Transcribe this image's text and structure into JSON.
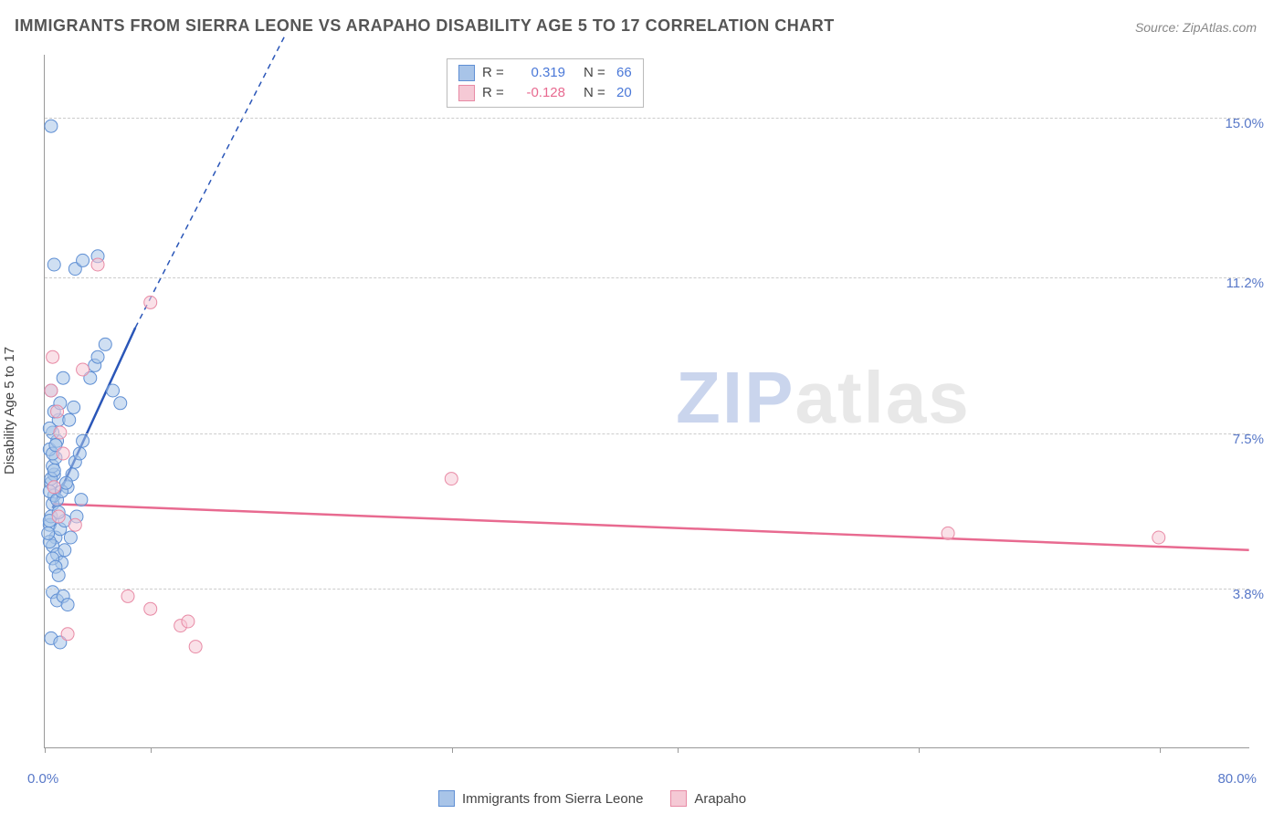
{
  "title": "IMMIGRANTS FROM SIERRA LEONE VS ARAPAHO DISABILITY AGE 5 TO 17 CORRELATION CHART",
  "source": "Source: ZipAtlas.com",
  "watermark_z": "ZIP",
  "watermark_rest": "atlas",
  "chart": {
    "type": "scatter",
    "xlim": [
      0,
      80
    ],
    "ylim": [
      0,
      16.5
    ],
    "x_axis_min_label": "0.0%",
    "x_axis_max_label": "80.0%",
    "y_axis_label": "Disability Age 5 to 17",
    "y_ticks": [
      3.8,
      7.5,
      11.2,
      15.0
    ],
    "y_tick_labels": [
      "3.8%",
      "7.5%",
      "11.2%",
      "15.0%"
    ],
    "x_tick_positions": [
      0,
      7,
      27,
      42,
      58,
      74
    ],
    "background_color": "#ffffff",
    "grid_color": "#cccccc",
    "series": [
      {
        "name": "Immigrants from Sierra Leone",
        "fill": "#a8c4e8",
        "stroke": "#5f8fd4",
        "fill_opacity": 0.55,
        "marker_radius": 7,
        "stats_r": "0.319",
        "stats_n": "66",
        "stats_r_color": "#4a78d8",
        "stats_n_color": "#4a78d8",
        "trend": {
          "x1": 0.5,
          "y1": 5.7,
          "x2": 6.0,
          "y2": 10.0,
          "dash_to_x": 16.0,
          "dash_to_y": 17.0,
          "color": "#2a56b8",
          "width": 2.5
        },
        "points": [
          [
            0.3,
            5.3
          ],
          [
            0.4,
            5.5
          ],
          [
            0.5,
            5.8
          ],
          [
            0.6,
            6.0
          ],
          [
            0.4,
            6.3
          ],
          [
            0.6,
            6.5
          ],
          [
            0.5,
            6.7
          ],
          [
            0.7,
            6.9
          ],
          [
            0.3,
            7.1
          ],
          [
            0.8,
            7.3
          ],
          [
            0.5,
            7.5
          ],
          [
            0.9,
            7.8
          ],
          [
            0.6,
            8.0
          ],
          [
            1.0,
            8.2
          ],
          [
            0.4,
            8.5
          ],
          [
            1.2,
            8.8
          ],
          [
            0.7,
            5.0
          ],
          [
            1.0,
            5.2
          ],
          [
            1.3,
            5.4
          ],
          [
            0.5,
            4.8
          ],
          [
            0.8,
            4.6
          ],
          [
            1.1,
            4.4
          ],
          [
            0.3,
            4.9
          ],
          [
            0.9,
            5.6
          ],
          [
            1.5,
            6.2
          ],
          [
            1.8,
            6.5
          ],
          [
            2.0,
            6.8
          ],
          [
            2.3,
            7.0
          ],
          [
            2.5,
            7.3
          ],
          [
            1.6,
            7.8
          ],
          [
            1.9,
            8.1
          ],
          [
            3.0,
            8.8
          ],
          [
            3.3,
            9.1
          ],
          [
            3.5,
            9.3
          ],
          [
            4.0,
            9.6
          ],
          [
            4.5,
            8.5
          ],
          [
            5.0,
            8.2
          ],
          [
            2.0,
            11.4
          ],
          [
            2.5,
            11.6
          ],
          [
            3.5,
            11.7
          ],
          [
            0.6,
            11.5
          ],
          [
            0.4,
            14.8
          ],
          [
            0.5,
            3.7
          ],
          [
            0.8,
            3.5
          ],
          [
            1.2,
            3.6
          ],
          [
            1.5,
            3.4
          ],
          [
            0.4,
            2.6
          ],
          [
            1.0,
            2.5
          ],
          [
            0.3,
            6.1
          ],
          [
            0.4,
            6.4
          ],
          [
            0.6,
            6.6
          ],
          [
            0.5,
            7.0
          ],
          [
            0.7,
            7.2
          ],
          [
            0.3,
            7.6
          ],
          [
            0.8,
            5.9
          ],
          [
            1.1,
            6.1
          ],
          [
            1.4,
            6.3
          ],
          [
            0.2,
            5.1
          ],
          [
            0.3,
            5.4
          ],
          [
            0.5,
            4.5
          ],
          [
            0.7,
            4.3
          ],
          [
            0.9,
            4.1
          ],
          [
            1.3,
            4.7
          ],
          [
            1.7,
            5.0
          ],
          [
            2.1,
            5.5
          ],
          [
            2.4,
            5.9
          ]
        ]
      },
      {
        "name": "Arapaho",
        "fill": "#f5c9d5",
        "stroke": "#e88aa5",
        "fill_opacity": 0.55,
        "marker_radius": 7,
        "stats_r": "-0.128",
        "stats_n": "20",
        "stats_r_color": "#e86a90",
        "stats_n_color": "#4a78d8",
        "trend": {
          "x1": 0.5,
          "y1": 5.8,
          "x2": 80.0,
          "y2": 4.7,
          "color": "#e86a90",
          "width": 2.5
        },
        "points": [
          [
            0.5,
            9.3
          ],
          [
            0.8,
            8.0
          ],
          [
            1.0,
            7.5
          ],
          [
            1.2,
            7.0
          ],
          [
            0.6,
            6.2
          ],
          [
            0.9,
            5.5
          ],
          [
            2.0,
            5.3
          ],
          [
            2.5,
            9.0
          ],
          [
            3.5,
            11.5
          ],
          [
            7.0,
            10.6
          ],
          [
            5.5,
            3.6
          ],
          [
            7.0,
            3.3
          ],
          [
            9.0,
            2.9
          ],
          [
            9.5,
            3.0
          ],
          [
            10.0,
            2.4
          ],
          [
            1.5,
            2.7
          ],
          [
            27.0,
            6.4
          ],
          [
            60.0,
            5.1
          ],
          [
            74.0,
            5.0
          ],
          [
            0.4,
            8.5
          ]
        ]
      }
    ],
    "legend": {
      "items": [
        {
          "label": "Immigrants from Sierra Leone",
          "fill": "#a8c4e8",
          "stroke": "#5f8fd4"
        },
        {
          "label": "Arapaho",
          "fill": "#f5c9d5",
          "stroke": "#e88aa5"
        }
      ]
    }
  }
}
